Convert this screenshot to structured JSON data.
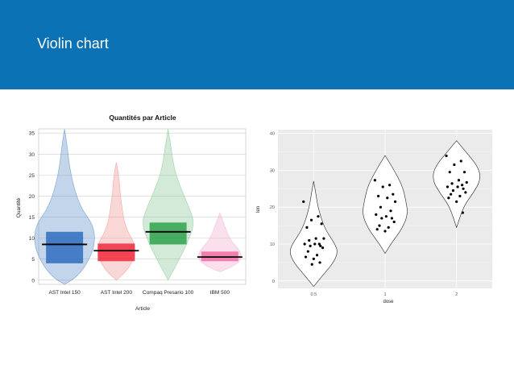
{
  "slide": {
    "title": "Violin chart",
    "header_color": "#0b72b5"
  },
  "chart_data": [
    {
      "type": "violin",
      "title": "Quantités par Article",
      "xlabel": "Article",
      "ylabel": "Quantité",
      "ylim": [
        -1,
        36
      ],
      "yticks": [
        0,
        5,
        10,
        15,
        20,
        25,
        30,
        35
      ],
      "grid": true,
      "categories": [
        {
          "name": "AST Intel 150",
          "color": "#4f86c6",
          "box_color": "#2f6fbf",
          "q1": 4,
          "median": 8.5,
          "q3": 11.5,
          "min": -1,
          "max": 36
        },
        {
          "name": "AST Intel 200",
          "color": "#f28b8b",
          "box_color": "#ee2c3c",
          "q1": 4.5,
          "median": 7,
          "q3": 8.7,
          "min": 0,
          "max": 28
        },
        {
          "name": "Compaq Presario 100",
          "color": "#7dc48d",
          "box_color": "#2ea24c",
          "q1": 8.5,
          "median": 11.5,
          "q3": 13.7,
          "min": 0,
          "max": 36
        },
        {
          "name": "IBM 500",
          "color": "#f2a6c8",
          "box_color": "#ef6fa6",
          "q1": 4.5,
          "median": 5.5,
          "q3": 6.8,
          "min": 2,
          "max": 16
        }
      ]
    },
    {
      "type": "violin",
      "title": "",
      "xlabel": "dose",
      "ylabel": "len",
      "ylim": [
        -2,
        41
      ],
      "yticks": [
        0,
        10,
        20,
        30,
        40
      ],
      "categories": [
        "0.5",
        "1",
        "2"
      ],
      "background": "#ebebeb",
      "series": [
        {
          "name": "0.5",
          "points": [
            21.5,
            17.5,
            16.5,
            15.5,
            14.5,
            11.5,
            11.5,
            11,
            10,
            10,
            10,
            9.5,
            9.5,
            9,
            8,
            7,
            6.5,
            6,
            5,
            4.5
          ]
        },
        {
          "name": "1",
          "points": [
            27.3,
            26,
            25.5,
            23.5,
            23,
            22.5,
            21.5,
            20,
            19,
            18,
            17.5,
            17,
            17,
            16,
            15,
            14.5,
            14,
            13.5
          ]
        },
        {
          "name": "2",
          "points": [
            33.9,
            32.5,
            31.5,
            29.5,
            29.5,
            27.3,
            26.7,
            26.4,
            26,
            25.5,
            25.5,
            25,
            24.5,
            24,
            23.5,
            23,
            22.5,
            21.5,
            18.5
          ]
        }
      ]
    }
  ]
}
